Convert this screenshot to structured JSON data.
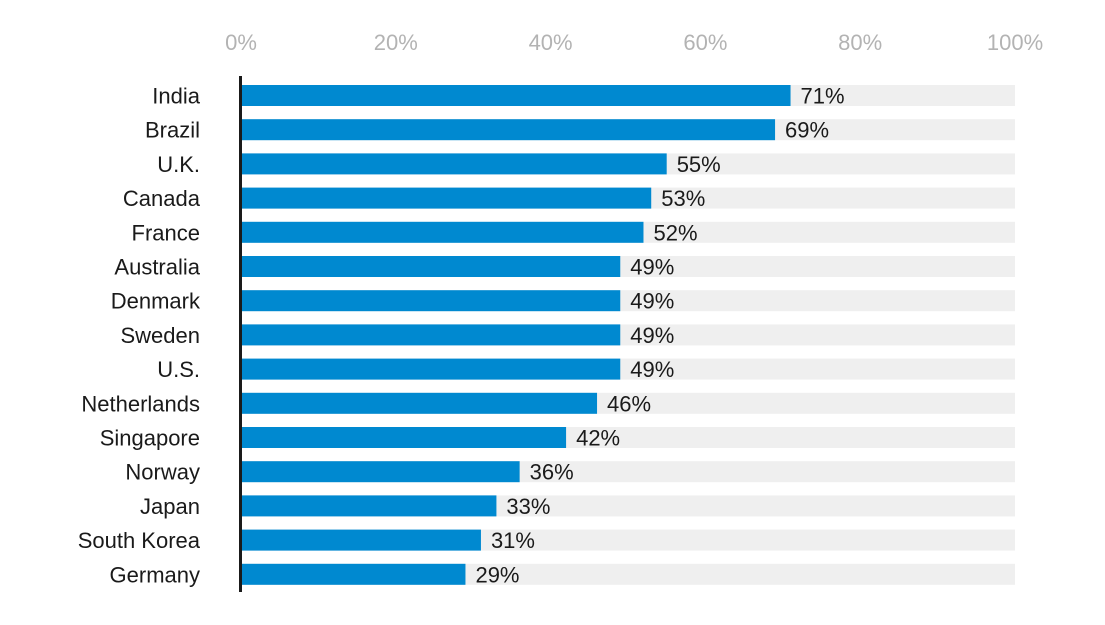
{
  "chart_data": {
    "type": "bar",
    "orientation": "horizontal",
    "categories": [
      "India",
      "Brazil",
      "U.K.",
      "Canada",
      "France",
      "Australia",
      "Denmark",
      "Sweden",
      "U.S.",
      "Netherlands",
      "Singapore",
      "Norway",
      "Japan",
      "South Korea",
      "Germany"
    ],
    "values": [
      71,
      69,
      55,
      53,
      52,
      49,
      49,
      49,
      49,
      46,
      42,
      36,
      33,
      31,
      29
    ],
    "data_labels": [
      "71%",
      "69%",
      "55%",
      "53%",
      "52%",
      "49%",
      "49%",
      "49%",
      "49%",
      "46%",
      "42%",
      "36%",
      "33%",
      "31%",
      "29%"
    ],
    "x_ticks": [
      0,
      20,
      40,
      60,
      80,
      100
    ],
    "x_tick_labels": [
      "0%",
      "20%",
      "40%",
      "60%",
      "80%",
      "100%"
    ],
    "xlim": [
      0,
      100
    ],
    "title": "",
    "xlabel": "",
    "ylabel": "",
    "grid": false,
    "legend": "none",
    "colors": {
      "bar": "#0089d0",
      "track": "#efefef",
      "axis": "#1a1a1a",
      "tick_text": "#b3b3b3",
      "label_text": "#1a1a1a"
    }
  }
}
